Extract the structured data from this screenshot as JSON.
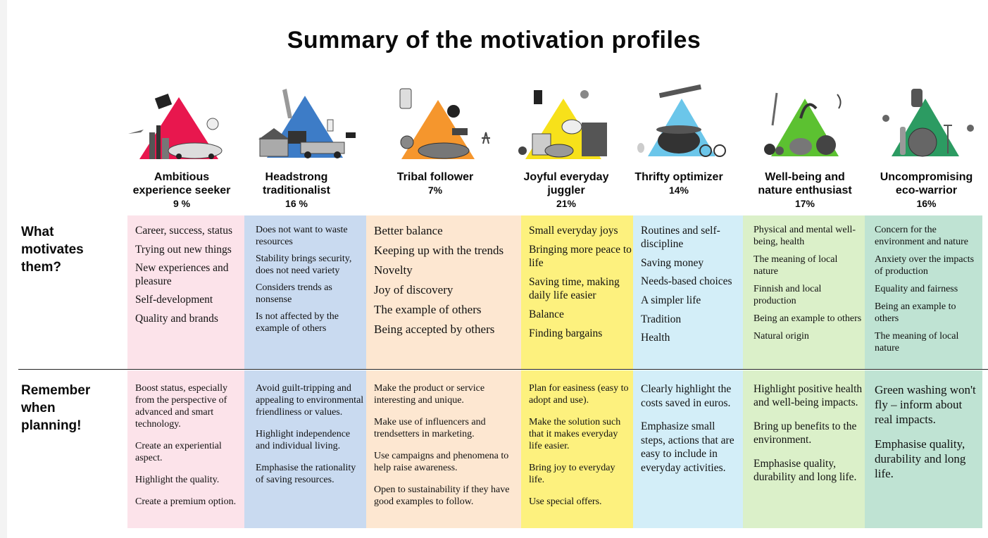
{
  "title": "Summary of the motivation profiles",
  "row_labels": {
    "motivates": [
      "What",
      "motivates",
      "them?"
    ],
    "remember": [
      "Remember",
      "when",
      "planning!"
    ]
  },
  "colors": {
    "profile_1": "#fce3ea",
    "profile_2": "#c9daf0",
    "profile_3": "#fde7d1",
    "profile_4": "#fdf17e",
    "profile_5": "#d3eef8",
    "profile_6": "#dbf0c9",
    "profile_7": "#bfe3d3",
    "triangle_1": "#e8174e",
    "triangle_2": "#3d7cc7",
    "triangle_3": "#f5962d",
    "triangle_4": "#f7e11a",
    "triangle_5": "#6bc6ea",
    "triangle_6": "#5cc131",
    "triangle_7": "#2c9b62"
  },
  "profiles": [
    {
      "name_lines": [
        "Ambitious",
        "experience seeker"
      ],
      "percent": "9 %",
      "motivations": [
        "Career, success, status",
        "Trying out new things",
        "New experiences and pleasure",
        "Self-development",
        "Quality and brands"
      ],
      "planning": [
        "Boost status, especially from the perspective of advanced and smart technology.",
        "Create an experiential aspect.",
        "Highlight the quality.",
        "Create a premium option."
      ]
    },
    {
      "name_lines": [
        "Headstrong",
        "traditionalist"
      ],
      "percent": "16 %",
      "motivations": [
        "Does not want to waste resources",
        "Stability brings security, does not need variety",
        "Considers trends as nonsense",
        "Is not affected by the example of others"
      ],
      "planning": [
        "Avoid guilt-tripping and appealing to environmental friendliness or values.",
        "Highlight independence and individual living.",
        "Emphasise the rationality of saving resources."
      ]
    },
    {
      "name_lines": [
        "Tribal follower"
      ],
      "percent": "7%",
      "motivations": [
        "Better balance",
        "Keeping up with the trends",
        "Novelty",
        "Joy of discovery",
        "The example of others",
        "Being accepted by others"
      ],
      "planning": [
        "Make the product or service interesting and unique.",
        "Make use of influencers and trendsetters in marketing.",
        "Use campaigns and phenomena to help raise awareness.",
        "Open to sustainability if they have good examples to follow."
      ]
    },
    {
      "name_lines": [
        "Joyful everyday",
        "juggler"
      ],
      "percent": "21%",
      "motivations": [
        "Small everyday joys",
        "Bringing more peace to life",
        "Saving time, making daily life easier",
        "Balance",
        "Finding bargains"
      ],
      "planning": [
        "Plan for easiness (easy to adopt and use).",
        "Make the solution such that it makes everyday life easier.",
        "Bring joy to everyday life.",
        "Use special offers."
      ]
    },
    {
      "name_lines": [
        "Thrifty optimizer"
      ],
      "percent": "14%",
      "motivations": [
        "Routines and self-discipline",
        "Saving money",
        "Needs-based choices",
        "A simpler life",
        "Tradition",
        "Health"
      ],
      "planning": [
        "Clearly highlight the costs saved in euros.",
        "Emphasize small steps, actions that are easy to include in everyday activities."
      ]
    },
    {
      "name_lines": [
        "Well-being and",
        "nature enthusiast"
      ],
      "percent": "17%",
      "motivations": [
        "Physical and mental well-being, health",
        "The meaning of local nature",
        "Finnish and local production",
        "Being an example to others",
        "Natural origin"
      ],
      "planning": [
        "Highlight positive health and well-being impacts.",
        "Bring up benefits to the environment.",
        "Emphasise quality, durability and long life."
      ]
    },
    {
      "name_lines": [
        "Uncompromising",
        "eco-warrior"
      ],
      "percent": "16%",
      "motivations": [
        "Concern for the environment and nature",
        "Anxiety over the impacts of production",
        "Equality and fairness",
        "Being an example to others",
        "The meaning of local nature"
      ],
      "planning": [
        "Green washing won't fly – inform about real impacts.",
        "Emphasise quality, durability and long life."
      ]
    }
  ]
}
